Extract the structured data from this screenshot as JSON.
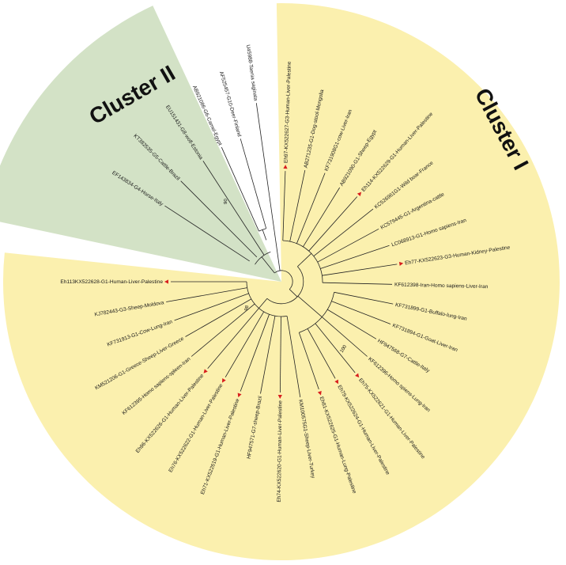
{
  "colors": {
    "cluster_one_fill": "#fbf0ae",
    "cluster_two_fill": "#d3e2c6",
    "branch": "#222222",
    "marker": "#d81e1e"
  },
  "clusters": {
    "one": {
      "title": "Cluster I"
    },
    "two": {
      "title": "Cluster II"
    }
  },
  "support_values": {
    "inner": "98",
    "cluster_one": "100",
    "cluster_two": "90"
  },
  "outgroup": {
    "label": "U45988-Taenia saginata"
  },
  "cluster_two_leaves": [
    {
      "label": "AF525457-G10-Deer-Finland"
    },
    {
      "label": "AB921086-G6-Camel-Egypt"
    },
    {
      "label": "EU151431-G8-wolf-Estonia"
    },
    {
      "label": "KT382535-G5-Cattle-Brazil"
    },
    {
      "label": "EF143834-G4-Horse-Italy"
    }
  ],
  "cluster_one_leaves": [
    {
      "label": "Eh97-KX522627-G3-Human-Liver-Palestine",
      "marked": true
    },
    {
      "label": "AB271235-G1-Dog-stool-Mongolia",
      "marked": false
    },
    {
      "label": "KF731908G1-cow-Liver-Iran",
      "marked": false
    },
    {
      "label": "AB921090-G1-Sheep-Egypt",
      "marked": false
    },
    {
      "label": "Eh114-KX522629-G1-Human-Liver-Palestine",
      "marked": true
    },
    {
      "label": "KC526961G1-Wild boar-France",
      "marked": false
    },
    {
      "label": "KC579445-G1-Argentina-cattle",
      "marked": false
    },
    {
      "label": "LC068913-G1-Homo sapiens-Iran",
      "marked": false
    },
    {
      "label": "Eh77-KX522623-G3-Human-Kidney-Palestine",
      "marked": true
    },
    {
      "label": "KF612398-Iran-Homo sapiens-Liver-Iran",
      "marked": false
    },
    {
      "label": "KF731899-G1-Buffalo-lung-Iran",
      "marked": false
    },
    {
      "label": "KF731894-G1-Goat-Liver-Iran",
      "marked": false
    },
    {
      "label": "HF947568-G7-Cattle-Italy",
      "marked": false
    },
    {
      "label": "KF612396-Homo spiens-Lung-Iran",
      "marked": false
    },
    {
      "label": "Eh75-KX522621-G1-Human-Liver-Palestine",
      "marked": true
    },
    {
      "label": "Eh79-KX522624-G1-Human-Liver-Palestine",
      "marked": true
    },
    {
      "label": "Eh81-KX522625-G1-Human-Lung-Palestine",
      "marked": true
    },
    {
      "label": "KM100575G1-Sheep-Liver-Turkey",
      "marked": false
    },
    {
      "label": "Eh74-KX522620-G1-Human-Liver-Palestine",
      "marked": true
    },
    {
      "label": "HF947571-G7-sheep-Brazil",
      "marked": false
    },
    {
      "label": "Eh71-KX522619-G1-Human-Liver-Palestine",
      "marked": true
    },
    {
      "label": "Eh76-KX522622-G1-Human-Liver-Palestine",
      "marked": true
    },
    {
      "label": "Eh96-KX522626-G1-Human-Liver-Palestine",
      "marked": true
    },
    {
      "label": "KF612395-Homo sapiens-spleen-Iran",
      "marked": false
    },
    {
      "label": "KM521206-G1-Greece-Sheep-Liver-Greece",
      "marked": false
    },
    {
      "label": "KF731913-G1-Cow-Lung-Iran",
      "marked": false
    },
    {
      "label": "KJ782443-G3-Sheep-Moldova",
      "marked": false
    },
    {
      "label": "Eh113KX522628-G1-Human-Liver-Palestine",
      "marked": true
    }
  ]
}
